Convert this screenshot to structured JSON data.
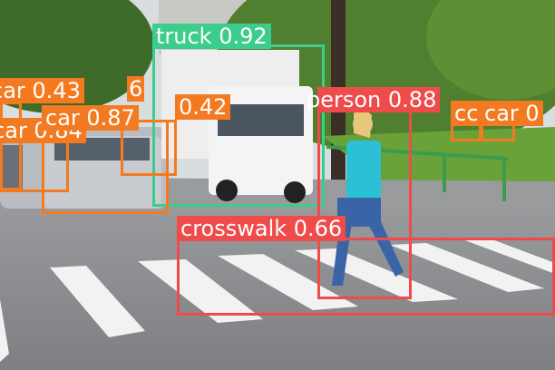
{
  "image": {
    "alt": "Street scene: a woman walking on a crosswalk with a white delivery truck and parked cars, overlaid with object detection boxes"
  },
  "palette": {
    "car": "#f47a21",
    "truck": "#3ccd8c",
    "person": "#ef4b4b",
    "crosswalk": "#ef4b4b"
  },
  "detections": [
    {
      "class": "truck",
      "score": "0.92",
      "text": "truck 0.92"
    },
    {
      "class": "person",
      "score": "0.88",
      "text": "person 0.88"
    },
    {
      "class": "car",
      "score": "0.87",
      "text": "car 0.87"
    },
    {
      "class": "crosswalk",
      "score": "0.66",
      "text": "crosswalk 0.66"
    },
    {
      "class": "car",
      "score": "0.43",
      "text": "car 0.43"
    },
    {
      "class": "car",
      "score": "0.42",
      "text": "0.42"
    },
    {
      "class": "car",
      "score": "0.84",
      "text": "car 0.84"
    },
    {
      "class": "car",
      "score": "0.36",
      "text": "6"
    },
    {
      "class": "car",
      "score": "",
      "text": "cc"
    },
    {
      "class": "car",
      "score": "",
      "text": "car 0"
    }
  ]
}
